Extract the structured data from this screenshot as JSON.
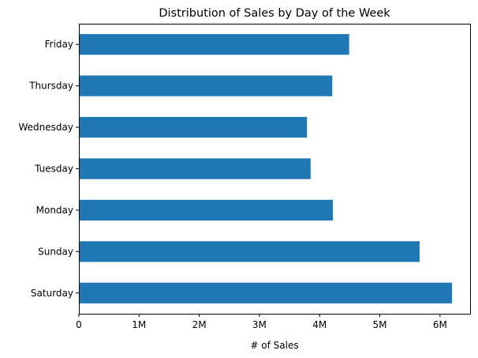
{
  "chart_data": {
    "type": "bar",
    "orientation": "horizontal",
    "title": "Distribution of Sales by Day of the Week",
    "xlabel": "# of Sales",
    "ylabel": "",
    "categories": [
      "Saturday",
      "Sunday",
      "Monday",
      "Tuesday",
      "Wednesday",
      "Thursday",
      "Friday"
    ],
    "values": [
      6200000,
      5660000,
      4220000,
      3850000,
      3790000,
      4210000,
      4490000
    ],
    "xlim": [
      0,
      6500000
    ],
    "xticks": [
      0,
      1000000,
      2000000,
      3000000,
      4000000,
      5000000,
      6000000
    ],
    "xtick_labels": [
      "0",
      "1M",
      "2M",
      "3M",
      "4M",
      "5M",
      "6M"
    ],
    "grid": false,
    "legend": "none",
    "bar_color": "#1f77b4"
  }
}
